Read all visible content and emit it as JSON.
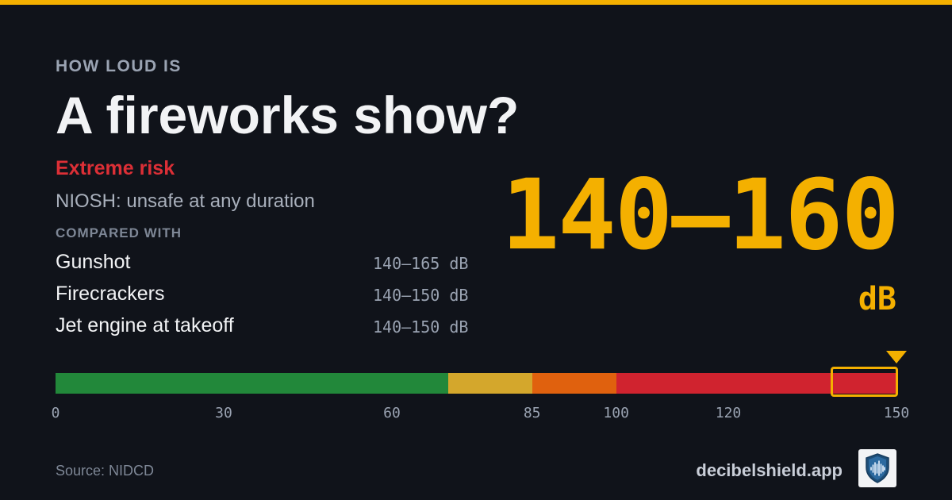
{
  "header": {
    "eyebrow": "HOW LOUD IS",
    "title": "A fireworks show?"
  },
  "risk": {
    "label": "Extreme risk",
    "niosh": "NIOSH: unsafe at any duration"
  },
  "comparison": {
    "heading": "COMPARED WITH",
    "items": [
      {
        "name": "Gunshot",
        "range": "140–165 dB"
      },
      {
        "name": "Firecrackers",
        "range": "140–150 dB"
      },
      {
        "name": "Jet engine at takeoff",
        "range": "140–150 dB"
      }
    ]
  },
  "level": {
    "range": "140–160",
    "unit": "dB",
    "low": 140,
    "high": 160
  },
  "scale": {
    "min": 0,
    "max": 150,
    "ticks": [
      "0",
      "30",
      "60",
      "85",
      "100",
      "120",
      "150"
    ],
    "tick_values": [
      0,
      30,
      60,
      85,
      100,
      120,
      150
    ],
    "segments": [
      {
        "from": 0,
        "to": 70,
        "color": "#22883a"
      },
      {
        "from": 70,
        "to": 85,
        "color": "#d4a72c"
      },
      {
        "from": 85,
        "to": 100,
        "color": "#e0610e"
      },
      {
        "from": 100,
        "to": 150,
        "color": "#d0232f"
      }
    ],
    "highlight": {
      "from": 140,
      "to": 150
    },
    "accent": "#f4b000"
  },
  "footer": {
    "source": "Source: NIDCD",
    "brand": "decibelshield.app",
    "logo_icon": "shield-soundwave-icon"
  }
}
